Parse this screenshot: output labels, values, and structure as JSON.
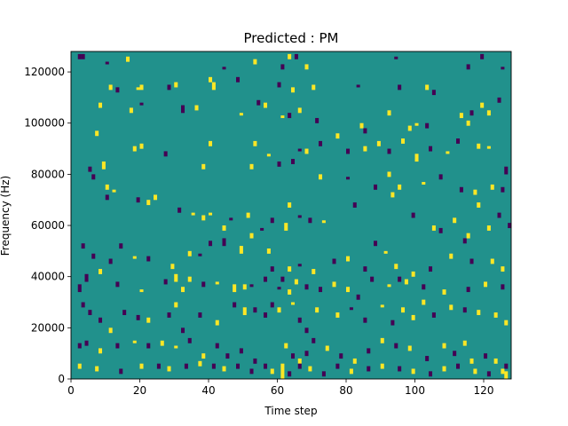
{
  "chart_data": {
    "type": "heatmap",
    "title": "Predicted : PM",
    "xlabel": "Time step",
    "ylabel": "Frequency (Hz)",
    "xlim": [
      0,
      128
    ],
    "ylim": [
      0,
      128000
    ],
    "x_ticks": [
      0,
      20,
      40,
      60,
      80,
      100,
      120
    ],
    "y_ticks": [
      0,
      20000,
      40000,
      60000,
      80000,
      100000,
      120000
    ],
    "x_tick_labels": [
      "0",
      "20",
      "40",
      "60",
      "80",
      "100",
      "120"
    ],
    "y_tick_labels": [
      "0",
      "20000",
      "40000",
      "60000",
      "80000",
      "100000",
      "120000"
    ],
    "n_time_steps": 128,
    "n_freq_bins": 128,
    "freq_bin_hz": 1000,
    "colors": {
      "background_value_0": "#21918c",
      "low_value_-1": "#440154",
      "high_value_1": "#fde725"
    },
    "description_of_values": "0 = background, -1 = low (dark), 1 = high (yellow)",
    "cells": [
      [
        2,
        125,
        2,
        -1
      ],
      [
        3,
        125,
        2,
        -1
      ],
      [
        10,
        123,
        1,
        -1
      ],
      [
        16,
        124,
        2,
        1
      ],
      [
        40,
        116,
        2,
        1
      ],
      [
        41,
        113,
        3,
        1
      ],
      [
        44,
        121,
        1,
        -1
      ],
      [
        48,
        116,
        2,
        -1
      ],
      [
        53,
        123,
        2,
        1
      ],
      [
        61,
        121,
        2,
        -1
      ],
      [
        63,
        125,
        2,
        1
      ],
      [
        65,
        125,
        2,
        -1
      ],
      [
        68,
        121,
        2,
        1
      ],
      [
        94,
        125,
        1,
        -1
      ],
      [
        115,
        121,
        2,
        -1
      ],
      [
        119,
        125,
        2,
        -1
      ],
      [
        125,
        121,
        1,
        -1
      ],
      [
        11,
        113,
        2,
        1
      ],
      [
        13,
        112,
        2,
        -1
      ],
      [
        19,
        113,
        1,
        1
      ],
      [
        20,
        113,
        2,
        1
      ],
      [
        28,
        113,
        2,
        -1
      ],
      [
        30,
        114,
        2,
        1
      ],
      [
        56,
        106,
        2,
        1
      ],
      [
        60,
        114,
        2,
        -1
      ],
      [
        64,
        112,
        2,
        1
      ],
      [
        70,
        113,
        2,
        1
      ],
      [
        83,
        114,
        1,
        -1
      ],
      [
        95,
        113,
        2,
        -1
      ],
      [
        103,
        113,
        2,
        1
      ],
      [
        105,
        111,
        2,
        -1
      ],
      [
        119,
        106,
        2,
        1
      ],
      [
        121,
        103,
        2,
        1
      ],
      [
        124,
        108,
        2,
        -1
      ],
      [
        8,
        106,
        2,
        1
      ],
      [
        17,
        104,
        2,
        1
      ],
      [
        20,
        107,
        1,
        -1
      ],
      [
        32,
        104,
        3,
        -1
      ],
      [
        36,
        105,
        2,
        1
      ],
      [
        49,
        103,
        1,
        1
      ],
      [
        54,
        107,
        2,
        -1
      ],
      [
        61,
        102,
        1,
        1
      ],
      [
        63,
        102,
        2,
        -1
      ],
      [
        66,
        104,
        2,
        1
      ],
      [
        71,
        100,
        2,
        -1
      ],
      [
        84,
        98,
        2,
        1
      ],
      [
        85,
        96,
        2,
        -1
      ],
      [
        92,
        103,
        2,
        1
      ],
      [
        98,
        97,
        2,
        1
      ],
      [
        100,
        99,
        1,
        1
      ],
      [
        103,
        98,
        2,
        -1
      ],
      [
        113,
        102,
        2,
        1
      ],
      [
        115,
        99,
        2,
        1
      ],
      [
        116,
        103,
        2,
        -1
      ],
      [
        7,
        95,
        2,
        1
      ],
      [
        18,
        89,
        2,
        1
      ],
      [
        20,
        90,
        2,
        1
      ],
      [
        27,
        87,
        2,
        -1
      ],
      [
        40,
        91,
        2,
        1
      ],
      [
        53,
        91,
        2,
        1
      ],
      [
        57,
        87,
        1,
        1
      ],
      [
        66,
        89,
        1,
        -1
      ],
      [
        68,
        88,
        2,
        1
      ],
      [
        72,
        91,
        2,
        -1
      ],
      [
        77,
        94,
        2,
        1
      ],
      [
        80,
        88,
        2,
        -1
      ],
      [
        85,
        89,
        2,
        1
      ],
      [
        89,
        91,
        2,
        1
      ],
      [
        92,
        88,
        2,
        -1
      ],
      [
        96,
        92,
        2,
        1
      ],
      [
        100,
        85,
        3,
        1
      ],
      [
        104,
        89,
        2,
        -1
      ],
      [
        109,
        88,
        1,
        1
      ],
      [
        112,
        92,
        2,
        -1
      ],
      [
        118,
        90,
        2,
        1
      ],
      [
        121,
        90,
        1,
        1
      ],
      [
        5,
        81,
        2,
        -1
      ],
      [
        6,
        78,
        2,
        -1
      ],
      [
        9,
        82,
        3,
        1
      ],
      [
        10,
        74,
        2,
        1
      ],
      [
        38,
        82,
        2,
        1
      ],
      [
        52,
        82,
        2,
        1
      ],
      [
        60,
        83,
        2,
        -1
      ],
      [
        64,
        84,
        2,
        -1
      ],
      [
        72,
        78,
        2,
        1
      ],
      [
        80,
        78,
        1,
        -1
      ],
      [
        88,
        74,
        2,
        -1
      ],
      [
        92,
        79,
        2,
        1
      ],
      [
        93,
        71,
        2,
        1
      ],
      [
        95,
        74,
        2,
        1
      ],
      [
        102,
        76,
        1,
        1
      ],
      [
        107,
        78,
        2,
        -1
      ],
      [
        113,
        73,
        2,
        -1
      ],
      [
        117,
        72,
        2,
        1
      ],
      [
        122,
        74,
        2,
        1
      ],
      [
        125,
        73,
        2,
        -1
      ],
      [
        126,
        80,
        3,
        -1
      ],
      [
        10,
        70,
        2,
        -1
      ],
      [
        12,
        73,
        1,
        1
      ],
      [
        19,
        69,
        2,
        -1
      ],
      [
        22,
        68,
        2,
        1
      ],
      [
        24,
        70,
        2,
        1
      ],
      [
        31,
        65,
        2,
        -1
      ],
      [
        35,
        64,
        1,
        1
      ],
      [
        38,
        62,
        2,
        1
      ],
      [
        40,
        64,
        1,
        1
      ],
      [
        44,
        58,
        2,
        1
      ],
      [
        46,
        62,
        1,
        -1
      ],
      [
        51,
        63,
        2,
        1
      ],
      [
        52,
        55,
        2,
        1
      ],
      [
        55,
        58,
        1,
        -1
      ],
      [
        58,
        61,
        2,
        -1
      ],
      [
        62,
        58,
        3,
        1
      ],
      [
        63,
        67,
        2,
        1
      ],
      [
        66,
        63,
        1,
        -1
      ],
      [
        69,
        61,
        2,
        -1
      ],
      [
        73,
        61,
        1,
        1
      ],
      [
        82,
        67,
        2,
        -1
      ],
      [
        99,
        63,
        2,
        -1
      ],
      [
        105,
        58,
        2,
        1
      ],
      [
        107,
        57,
        2,
        -1
      ],
      [
        111,
        61,
        2,
        1
      ],
      [
        114,
        53,
        2,
        -1
      ],
      [
        115,
        55,
        2,
        1
      ],
      [
        118,
        67,
        2,
        1
      ],
      [
        121,
        58,
        2,
        1
      ],
      [
        124,
        63,
        2,
        -1
      ],
      [
        127,
        59,
        2,
        -1
      ],
      [
        3,
        51,
        2,
        -1
      ],
      [
        6,
        47,
        2,
        -1
      ],
      [
        11,
        45,
        2,
        -1
      ],
      [
        14,
        51,
        2,
        -1
      ],
      [
        18,
        47,
        1,
        1
      ],
      [
        22,
        46,
        2,
        -1
      ],
      [
        29,
        43,
        2,
        1
      ],
      [
        34,
        48,
        2,
        1
      ],
      [
        37,
        48,
        1,
        -1
      ],
      [
        40,
        52,
        2,
        -1
      ],
      [
        44,
        52,
        3,
        -1
      ],
      [
        49,
        49,
        3,
        1
      ],
      [
        50,
        35,
        2,
        1
      ],
      [
        57,
        49,
        2,
        1
      ],
      [
        58,
        42,
        2,
        -1
      ],
      [
        61,
        38,
        2,
        -1
      ],
      [
        63,
        42,
        2,
        1
      ],
      [
        66,
        44,
        1,
        -1
      ],
      [
        70,
        41,
        2,
        1
      ],
      [
        76,
        45,
        2,
        -1
      ],
      [
        80,
        46,
        2,
        1
      ],
      [
        85,
        42,
        2,
        -1
      ],
      [
        88,
        52,
        2,
        -1
      ],
      [
        91,
        49,
        1,
        1
      ],
      [
        94,
        43,
        2,
        1
      ],
      [
        99,
        40,
        2,
        1
      ],
      [
        104,
        42,
        2,
        -1
      ],
      [
        110,
        47,
        2,
        1
      ],
      [
        116,
        45,
        2,
        -1
      ],
      [
        122,
        45,
        2,
        1
      ],
      [
        125,
        42,
        2,
        1
      ],
      [
        2,
        34,
        3,
        -1
      ],
      [
        4,
        38,
        3,
        -1
      ],
      [
        8,
        41,
        2,
        1
      ],
      [
        13,
        36,
        2,
        -1
      ],
      [
        20,
        34,
        1,
        1
      ],
      [
        27,
        37,
        2,
        -1
      ],
      [
        30,
        38,
        3,
        1
      ],
      [
        32,
        34,
        2,
        1
      ],
      [
        34,
        38,
        2,
        1
      ],
      [
        38,
        36,
        2,
        -1
      ],
      [
        42,
        37,
        1,
        1
      ],
      [
        47,
        34,
        3,
        1
      ],
      [
        52,
        36,
        1,
        -1
      ],
      [
        56,
        38,
        2,
        -1
      ],
      [
        60,
        35,
        1,
        -1
      ],
      [
        63,
        33,
        2,
        1
      ],
      [
        65,
        37,
        2,
        1
      ],
      [
        68,
        35,
        2,
        -1
      ],
      [
        72,
        34,
        2,
        -1
      ],
      [
        76,
        36,
        2,
        1
      ],
      [
        80,
        34,
        2,
        1
      ],
      [
        83,
        31,
        2,
        -1
      ],
      [
        87,
        38,
        2,
        -1
      ],
      [
        92,
        36,
        1,
        1
      ],
      [
        95,
        38,
        2,
        -1
      ],
      [
        97,
        37,
        2,
        1
      ],
      [
        102,
        35,
        2,
        -1
      ],
      [
        108,
        33,
        2,
        1
      ],
      [
        115,
        34,
        2,
        -1
      ],
      [
        120,
        36,
        2,
        1
      ],
      [
        125,
        35,
        2,
        -1
      ],
      [
        3,
        28,
        2,
        -1
      ],
      [
        5,
        25,
        2,
        -1
      ],
      [
        8,
        22,
        2,
        -1
      ],
      [
        11,
        18,
        2,
        1
      ],
      [
        15,
        25,
        2,
        -1
      ],
      [
        19,
        23,
        2,
        -1
      ],
      [
        22,
        22,
        2,
        1
      ],
      [
        28,
        24,
        2,
        -1
      ],
      [
        30,
        28,
        2,
        1
      ],
      [
        32,
        18,
        2,
        -1
      ],
      [
        37,
        24,
        2,
        -1
      ],
      [
        42,
        21,
        2,
        1
      ],
      [
        47,
        28,
        2,
        -1
      ],
      [
        50,
        25,
        3,
        1
      ],
      [
        53,
        26,
        2,
        -1
      ],
      [
        56,
        24,
        2,
        -1
      ],
      [
        58,
        28,
        2,
        -1
      ],
      [
        60,
        26,
        2,
        1
      ],
      [
        64,
        29,
        1,
        1
      ],
      [
        66,
        22,
        2,
        -1
      ],
      [
        68,
        18,
        2,
        -1
      ],
      [
        71,
        26,
        2,
        1
      ],
      [
        77,
        24,
        2,
        1
      ],
      [
        81,
        27,
        1,
        -1
      ],
      [
        85,
        22,
        2,
        -1
      ],
      [
        90,
        28,
        1,
        1
      ],
      [
        93,
        21,
        2,
        -1
      ],
      [
        96,
        26,
        2,
        1
      ],
      [
        99,
        23,
        2,
        1
      ],
      [
        102,
        29,
        2,
        1
      ],
      [
        105,
        24,
        2,
        -1
      ],
      [
        110,
        27,
        2,
        1
      ],
      [
        114,
        26,
        2,
        -1
      ],
      [
        118,
        25,
        2,
        1
      ],
      [
        123,
        24,
        2,
        1
      ],
      [
        126,
        21,
        2,
        1
      ],
      [
        2,
        12,
        2,
        -1
      ],
      [
        4,
        13,
        2,
        -1
      ],
      [
        8,
        10,
        2,
        1
      ],
      [
        13,
        12,
        2,
        -1
      ],
      [
        18,
        14,
        1,
        1
      ],
      [
        22,
        12,
        2,
        -1
      ],
      [
        26,
        13,
        2,
        1
      ],
      [
        30,
        12,
        1,
        1
      ],
      [
        34,
        14,
        2,
        -1
      ],
      [
        38,
        8,
        2,
        1
      ],
      [
        42,
        12,
        2,
        -1
      ],
      [
        45,
        8,
        2,
        -1
      ],
      [
        49,
        10,
        2,
        -1
      ],
      [
        53,
        6,
        2,
        -1
      ],
      [
        61,
        0,
        6,
        1
      ],
      [
        62,
        12,
        2,
        1
      ],
      [
        64,
        8,
        2,
        -1
      ],
      [
        66,
        6,
        2,
        1
      ],
      [
        68,
        9,
        2,
        -1
      ],
      [
        70,
        14,
        2,
        -1
      ],
      [
        74,
        11,
        2,
        1
      ],
      [
        78,
        8,
        2,
        -1
      ],
      [
        82,
        6,
        2,
        1
      ],
      [
        86,
        10,
        2,
        -1
      ],
      [
        90,
        14,
        2,
        1
      ],
      [
        94,
        12,
        2,
        -1
      ],
      [
        98,
        11,
        2,
        1
      ],
      [
        103,
        7,
        2,
        -1
      ],
      [
        108,
        12,
        2,
        1
      ],
      [
        111,
        9,
        2,
        -1
      ],
      [
        114,
        13,
        2,
        1
      ],
      [
        116,
        6,
        2,
        1
      ],
      [
        120,
        8,
        2,
        -1
      ],
      [
        123,
        6,
        2,
        1
      ],
      [
        126,
        4,
        2,
        -1
      ],
      [
        2,
        4,
        2,
        1
      ],
      [
        7,
        3,
        2,
        1
      ],
      [
        14,
        2,
        2,
        -1
      ],
      [
        20,
        4,
        2,
        1
      ],
      [
        25,
        4,
        2,
        -1
      ],
      [
        28,
        3,
        2,
        1
      ],
      [
        33,
        4,
        2,
        -1
      ],
      [
        37,
        5,
        2,
        1
      ],
      [
        41,
        4,
        2,
        -1
      ],
      [
        44,
        3,
        2,
        1
      ],
      [
        48,
        4,
        2,
        -1
      ],
      [
        52,
        2,
        2,
        -1
      ],
      [
        56,
        4,
        2,
        -1
      ],
      [
        58,
        2,
        2,
        1
      ],
      [
        63,
        1,
        2,
        -1
      ],
      [
        66,
        4,
        2,
        -1
      ],
      [
        69,
        3,
        2,
        1
      ],
      [
        73,
        1,
        2,
        -1
      ],
      [
        77,
        4,
        2,
        -1
      ],
      [
        81,
        2,
        2,
        1
      ],
      [
        86,
        3,
        2,
        -1
      ],
      [
        90,
        4,
        2,
        1
      ],
      [
        95,
        3,
        2,
        -1
      ],
      [
        99,
        2,
        2,
        1
      ],
      [
        104,
        1,
        2,
        -1
      ],
      [
        108,
        3,
        2,
        1
      ],
      [
        112,
        4,
        2,
        -1
      ],
      [
        117,
        2,
        2,
        1
      ],
      [
        121,
        1,
        2,
        -1
      ],
      [
        125,
        2,
        2,
        1
      ],
      [
        126,
        0,
        3,
        1
      ]
    ]
  }
}
